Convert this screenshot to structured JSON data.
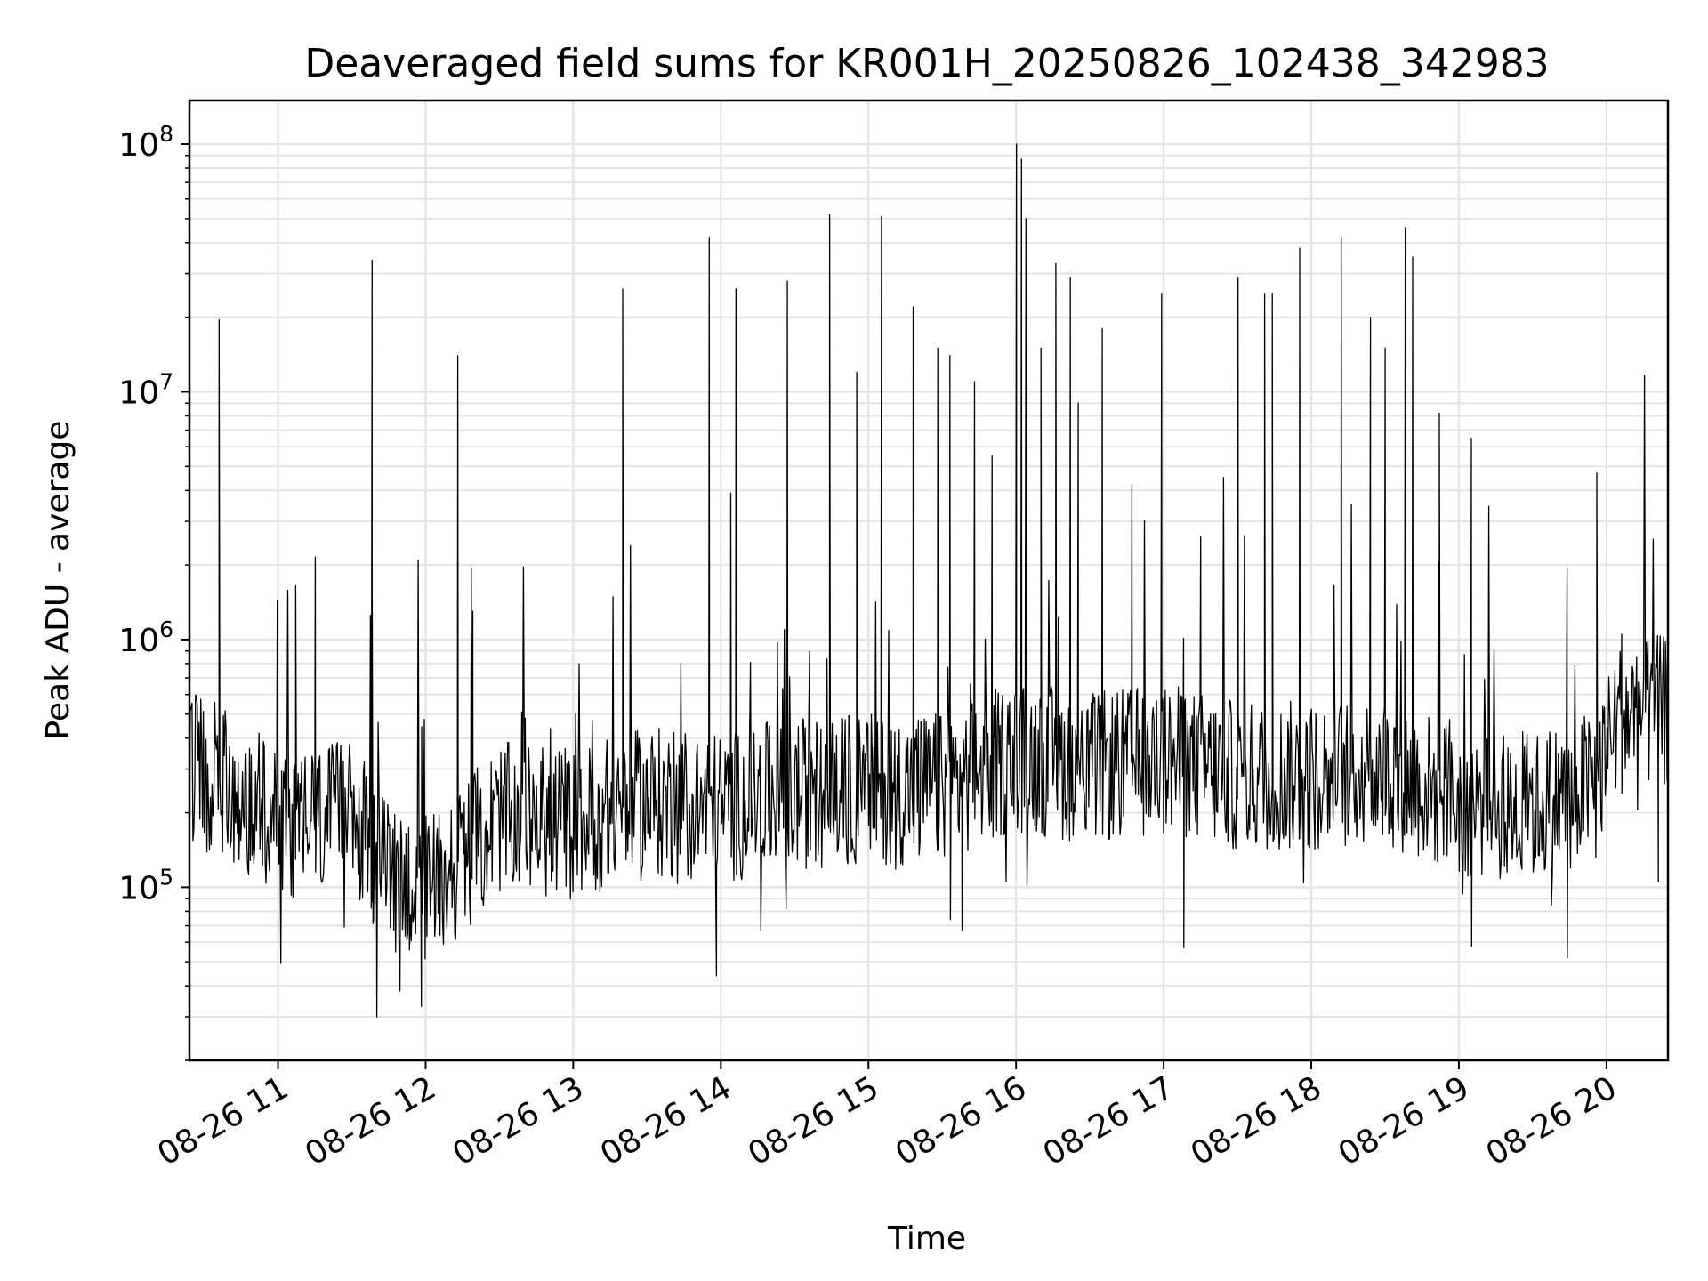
{
  "chart_data": {
    "type": "line",
    "title": "Deaveraged field sums for KR001H_20250826_102438_342983",
    "xlabel": "Time",
    "ylabel": "Peak ADU - average",
    "yscale": "log",
    "ylim": [
      20000,
      150000000
    ],
    "xlim": [
      "2025-08-26 10:24",
      "2025-08-26 20:25"
    ],
    "grid": true,
    "line_color": "#000000",
    "x_ticks": [
      "08-26 11",
      "08-26 12",
      "08-26 13",
      "08-26 14",
      "08-26 15",
      "08-26 16",
      "08-26 17",
      "08-26 18",
      "08-26 19",
      "08-26 20"
    ],
    "y_ticks": [
      {
        "base": "10",
        "exp": "5",
        "value": 100000
      },
      {
        "base": "10",
        "exp": "6",
        "value": 1000000
      },
      {
        "base": "10",
        "exp": "7",
        "value": 10000000
      },
      {
        "base": "10",
        "exp": "8",
        "value": 100000000
      }
    ],
    "series": [
      {
        "baseline": [
          [
            "2025-08-26 10:24",
            300000
          ],
          [
            "2025-08-26 10:40",
            260000
          ],
          [
            "2025-08-26 11:00",
            180000
          ],
          [
            "2025-08-26 11:30",
            190000
          ],
          [
            "2025-08-26 11:45",
            110000
          ],
          [
            "2025-08-26 12:00",
            100000
          ],
          [
            "2025-08-26 12:15",
            130000
          ],
          [
            "2025-08-26 12:30",
            190000
          ],
          [
            "2025-08-26 13:00",
            180000
          ],
          [
            "2025-08-26 13:30",
            220000
          ],
          [
            "2025-08-26 14:00",
            210000
          ],
          [
            "2025-08-26 14:30",
            240000
          ],
          [
            "2025-08-26 15:00",
            250000
          ],
          [
            "2025-08-26 15:30",
            250000
          ],
          [
            "2025-08-26 16:00",
            340000
          ],
          [
            "2025-08-26 16:30",
            300000
          ],
          [
            "2025-08-26 17:00",
            330000
          ],
          [
            "2025-08-26 17:30",
            280000
          ],
          [
            "2025-08-26 18:00",
            280000
          ],
          [
            "2025-08-26 18:30",
            300000
          ],
          [
            "2025-08-26 19:00",
            220000
          ],
          [
            "2025-08-26 19:30",
            210000
          ],
          [
            "2025-08-26 19:55",
            260000
          ],
          [
            "2025-08-26 20:05",
            480000
          ],
          [
            "2025-08-26 20:25",
            520000
          ]
        ],
        "spikes": [
          [
            "2025-08-26 10:36",
            19500000
          ],
          [
            "2025-08-26 11:07",
            1650000
          ],
          [
            "2025-08-26 11:15",
            2150000
          ],
          [
            "2025-08-26 11:38",
            34000000
          ],
          [
            "2025-08-26 11:38",
            1450000
          ],
          [
            "2025-08-26 12:13",
            14000000
          ],
          [
            "2025-08-26 12:19",
            1300000
          ],
          [
            "2025-08-26 13:20",
            26000000
          ],
          [
            "2025-08-26 13:55",
            42000000
          ],
          [
            "2025-08-26 14:06",
            26000000
          ],
          [
            "2025-08-26 14:04",
            3900000
          ],
          [
            "2025-08-26 14:27",
            28000000
          ],
          [
            "2025-08-26 14:44",
            52000000
          ],
          [
            "2025-08-26 14:55",
            12000000
          ],
          [
            "2025-08-26 15:05",
            51000000
          ],
          [
            "2025-08-26 15:18",
            22000000
          ],
          [
            "2025-08-26 15:28",
            15000000
          ],
          [
            "2025-08-26 15:33",
            14000000
          ],
          [
            "2025-08-26 15:43",
            11000000
          ],
          [
            "2025-08-26 15:50",
            5500000
          ],
          [
            "2025-08-26 16:00",
            100000000
          ],
          [
            "2025-08-26 16:02",
            87000000
          ],
          [
            "2025-08-26 16:04",
            50000000
          ],
          [
            "2025-08-26 16:10",
            15000000
          ],
          [
            "2025-08-26 16:16",
            33000000
          ],
          [
            "2025-08-26 16:22",
            29000000
          ],
          [
            "2025-08-26 16:25",
            9000000
          ],
          [
            "2025-08-26 16:35",
            18000000
          ],
          [
            "2025-08-26 16:47",
            4200000
          ],
          [
            "2025-08-26 16:59",
            25000000
          ],
          [
            "2025-08-26 17:15",
            2600000
          ],
          [
            "2025-08-26 17:30",
            29000000
          ],
          [
            "2025-08-26 17:41",
            25000000
          ],
          [
            "2025-08-26 17:44",
            25000000
          ],
          [
            "2025-08-26 17:55",
            38000000
          ],
          [
            "2025-08-26 18:12",
            42000000
          ],
          [
            "2025-08-26 18:24",
            20000000
          ],
          [
            "2025-08-26 18:30",
            15000000
          ],
          [
            "2025-08-26 18:38",
            46000000
          ],
          [
            "2025-08-26 18:41",
            35000000
          ],
          [
            "2025-08-26 18:52",
            8200000
          ],
          [
            "2025-08-26 19:05",
            6500000
          ],
          [
            "2025-08-26 19:56",
            4700000
          ],
          [
            "2025-08-26 20:06",
            1050000
          ],
          [
            "2025-08-26 20:25",
            4200000
          ]
        ],
        "dips": [
          [
            "2025-08-26 11:40",
            30000
          ],
          [
            "2025-08-26 11:58",
            33000
          ],
          [
            "2025-08-26 13:58",
            44000
          ],
          [
            "2025-08-26 15:38",
            67000
          ],
          [
            "2025-08-26 17:08",
            57000
          ],
          [
            "2025-08-26 19:05",
            58000
          ],
          [
            "2025-08-26 19:44",
            52000
          ],
          [
            "2025-08-26 20:21",
            105000
          ]
        ]
      }
    ]
  }
}
